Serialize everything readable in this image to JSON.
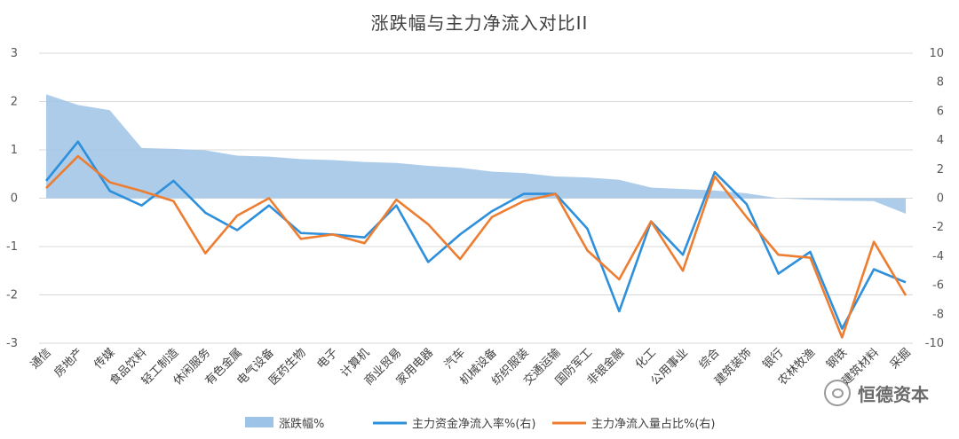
{
  "chart_data": {
    "type": "line",
    "title": "涨跌幅与主力净流入对比II",
    "categories": [
      "通信",
      "房地产",
      "传媒",
      "食品饮料",
      "轻工制造",
      "休闲服务",
      "有色金属",
      "电气设备",
      "医药生物",
      "电子",
      "计算机",
      "商业贸易",
      "家用电器",
      "汽车",
      "机械设备",
      "纺织服装",
      "交通运输",
      "国防军工",
      "非银金融",
      "化工",
      "公用事业",
      "综合",
      "建筑装饰",
      "银行",
      "农林牧渔",
      "钢铁",
      "建筑材料",
      "采掘"
    ],
    "left_axis": {
      "min": -3,
      "max": 3,
      "ticks": [
        3,
        2,
        1,
        0,
        -1,
        -2,
        -3
      ]
    },
    "right_axis": {
      "min": -10,
      "max": 10,
      "ticks": [
        10,
        8,
        6,
        4,
        2,
        0,
        -2,
        -4,
        -6,
        -8,
        -10
      ]
    },
    "series": [
      {
        "name": "涨跌幅%",
        "kind": "area",
        "axis": "left",
        "color": "#9dc3e6",
        "values": [
          2.15,
          1.93,
          1.82,
          1.04,
          1.02,
          0.99,
          0.88,
          0.86,
          0.81,
          0.79,
          0.75,
          0.73,
          0.67,
          0.63,
          0.55,
          0.52,
          0.45,
          0.43,
          0.38,
          0.22,
          0.19,
          0.16,
          0.1,
          0.0,
          -0.03,
          -0.05,
          -0.06,
          -0.32
        ]
      },
      {
        "name": "主力资金净流入率%(右)",
        "kind": "line",
        "axis": "right",
        "color": "#2e8fdb",
        "values": [
          1.2,
          3.9,
          0.5,
          -0.5,
          1.2,
          -1.0,
          -2.2,
          -0.5,
          -2.4,
          -2.5,
          -2.7,
          -0.5,
          -4.4,
          -2.5,
          -0.9,
          0.3,
          0.3,
          -2.1,
          -7.8,
          -1.6,
          -3.9,
          1.8,
          -0.4,
          -5.2,
          -3.7,
          -9.0,
          -4.9,
          -5.8
        ]
      },
      {
        "name": "主力净流入量占比%(右)",
        "kind": "line",
        "axis": "right",
        "color": "#ed7d31",
        "values": [
          0.7,
          2.9,
          1.1,
          0.5,
          -0.2,
          -3.8,
          -1.2,
          0.0,
          -2.8,
          -2.5,
          -3.1,
          -0.1,
          -1.8,
          -4.2,
          -1.3,
          -0.2,
          0.3,
          -3.6,
          -5.6,
          -1.6,
          -5.0,
          1.5,
          -1.3,
          -3.9,
          -4.1,
          -9.6,
          -3.0,
          -6.7
        ]
      }
    ],
    "legend_position": "bottom",
    "grid": "horizontal"
  },
  "watermark": {
    "text": "恒德资本",
    "icon": "wechat-icon"
  }
}
